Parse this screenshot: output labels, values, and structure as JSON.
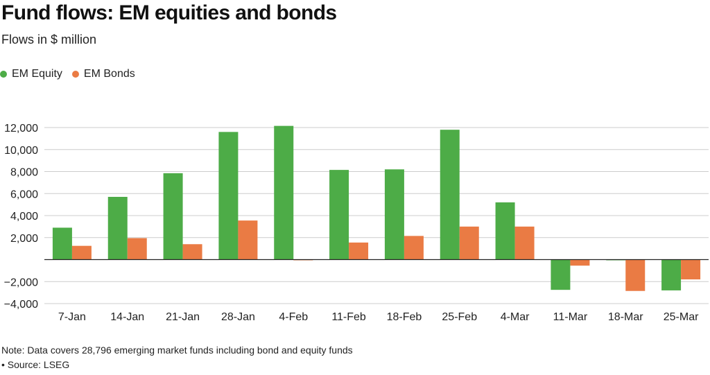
{
  "header": {
    "title": "Fund flows: EM equities and bonds",
    "subtitle": "Flows in $ million"
  },
  "footer": {
    "note": "Note: Data covers 28,796 emerging market funds including bond and equity funds",
    "source": "• Source: LSEG"
  },
  "colors": {
    "equity": "#4dac47",
    "bonds": "#ea7b44",
    "grid": "#cccccc",
    "zero_line": "#222222"
  },
  "chart_data": {
    "type": "bar",
    "title": "Fund flows: EM equities and bonds",
    "subtitle": "Flows in $ million",
    "xlabel": "",
    "ylabel": "",
    "categories": [
      "7-Jan",
      "14-Jan",
      "21-Jan",
      "28-Jan",
      "4-Feb",
      "11-Feb",
      "18-Feb",
      "25-Feb",
      "4-Mar",
      "11-Mar",
      "18-Mar",
      "25-Mar"
    ],
    "series": [
      {
        "name": "EM Equity",
        "color": "#4dac47",
        "values": [
          2900,
          5700,
          7850,
          11600,
          12150,
          8150,
          8200,
          11800,
          5200,
          -2750,
          -50,
          -2800
        ]
      },
      {
        "name": "EM Bonds",
        "color": "#ea7b44",
        "values": [
          1250,
          1950,
          1400,
          3550,
          -50,
          1550,
          2150,
          3000,
          3000,
          -550,
          -2850,
          -1800
        ]
      }
    ],
    "yticks": [
      -4000,
      -2000,
      2000,
      4000,
      6000,
      8000,
      10000,
      12000
    ],
    "ytick_labels": [
      "−4,000",
      "−2,000",
      "2,000",
      "4,000",
      "6,000",
      "8,000",
      "10,000",
      "12,000"
    ],
    "ylim": [
      -4000,
      12000
    ],
    "grid": true,
    "legend_position": "top-left"
  }
}
